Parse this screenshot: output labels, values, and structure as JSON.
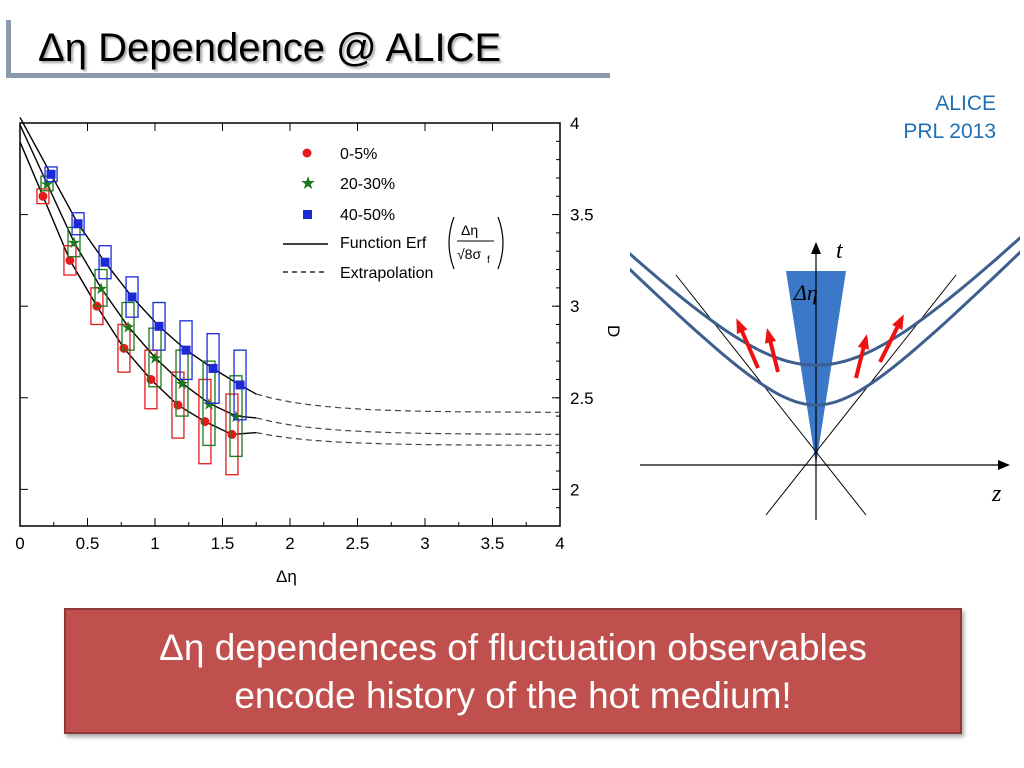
{
  "slide": {
    "title": "Δη Dependence @ ALICE",
    "source_line1": "ALICE",
    "source_line2": "PRL 2013",
    "callout_line1": "Δη dependences of fluctuation observables",
    "callout_line2": "encode history of the hot medium!"
  },
  "chart_data": {
    "type": "scatter",
    "xlabel": "Δη",
    "ylabel": "D",
    "xlim": [
      0,
      4
    ],
    "ylim": [
      1.8,
      4.0
    ],
    "x_ticks": [
      "0",
      "0.5",
      "1",
      "1.5",
      "2",
      "2.5",
      "3",
      "3.5",
      "4"
    ],
    "y_ticks": [
      "2",
      "2.5",
      "3",
      "3.5",
      "4"
    ],
    "y_axis_side": "right",
    "legend_position": "top-right",
    "legend": {
      "fit_label": "Function Erf",
      "erf_numerator": "Δη",
      "erf_denominator": "√8σ",
      "erf_sub": "f",
      "extrap_label": "Extrapolation"
    },
    "series": [
      {
        "name": "0-5%",
        "color": "#e31a1c",
        "marker": "circle",
        "x": [
          0.17,
          0.37,
          0.57,
          0.77,
          0.97,
          1.17,
          1.37,
          1.57
        ],
        "y": [
          3.6,
          3.25,
          3.0,
          2.77,
          2.6,
          2.46,
          2.37,
          2.3
        ],
        "sys_low": [
          3.56,
          3.17,
          2.9,
          2.64,
          2.44,
          2.28,
          2.14,
          2.08
        ],
        "sys_high": [
          3.64,
          3.33,
          3.1,
          2.9,
          2.76,
          2.64,
          2.6,
          2.52
        ],
        "fit_end": 2.31,
        "plateau": 2.24
      },
      {
        "name": "20-30%",
        "color": "#1a7a1a",
        "marker": "star",
        "x": [
          0.2,
          0.4,
          0.6,
          0.8,
          1.0,
          1.2,
          1.4,
          1.6
        ],
        "y": [
          3.67,
          3.35,
          3.1,
          2.89,
          2.72,
          2.58,
          2.47,
          2.4
        ],
        "sys_low": [
          3.63,
          3.27,
          3.0,
          2.76,
          2.56,
          2.4,
          2.24,
          2.18
        ],
        "sys_high": [
          3.71,
          3.43,
          3.2,
          3.02,
          2.88,
          2.76,
          2.7,
          2.62
        ],
        "fit_end": 2.39,
        "plateau": 2.3
      },
      {
        "name": "40-50%",
        "color": "#1c2ad6",
        "marker": "square",
        "x": [
          0.23,
          0.43,
          0.63,
          0.83,
          1.03,
          1.23,
          1.43,
          1.63
        ],
        "y": [
          3.72,
          3.45,
          3.24,
          3.05,
          2.89,
          2.76,
          2.66,
          2.57
        ],
        "sys_low": [
          3.68,
          3.39,
          3.15,
          2.94,
          2.76,
          2.6,
          2.47,
          2.38
        ],
        "sys_high": [
          3.76,
          3.51,
          3.33,
          3.16,
          3.02,
          2.92,
          2.85,
          2.76
        ],
        "fit_end": 2.52,
        "plateau": 2.42
      }
    ]
  },
  "schematic": {
    "t_label": "t",
    "z_label": "z",
    "deta_label": "Δη",
    "cone_color": "#3c78c8",
    "hyperbola_color": "#3d5f8f",
    "arrow_color": "#ee1111"
  }
}
